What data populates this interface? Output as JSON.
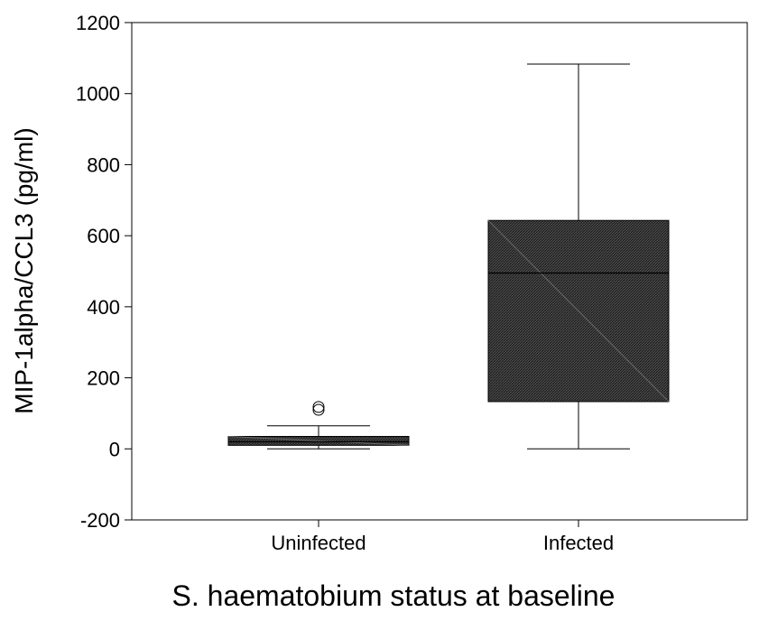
{
  "chart_data": {
    "type": "boxplot",
    "title": "",
    "xlabel": "S. haematobium status at baseline",
    "ylabel": "MIP-1alpha/CCL3 (pg/ml)",
    "ylim": [
      -200,
      1200
    ],
    "yticks": [
      "-200",
      "0",
      "200",
      "400",
      "600",
      "800",
      "1000",
      "1200"
    ],
    "yticks_values": [
      -200,
      0,
      200,
      400,
      600,
      800,
      1000,
      1200
    ],
    "grid": false,
    "legend": "none",
    "categories": [
      "Uninfected",
      "Infected"
    ],
    "boxes": [
      {
        "category": "Uninfected",
        "min": 0,
        "q1": 10,
        "median": 20,
        "q3": 35,
        "max": 65,
        "outliers": [
          110,
          118
        ]
      },
      {
        "category": "Infected",
        "min": 0,
        "q1": 133,
        "median": 495,
        "q3": 643,
        "max": 1083,
        "outliers": []
      }
    ],
    "box_fill": "#3a3a3a"
  }
}
